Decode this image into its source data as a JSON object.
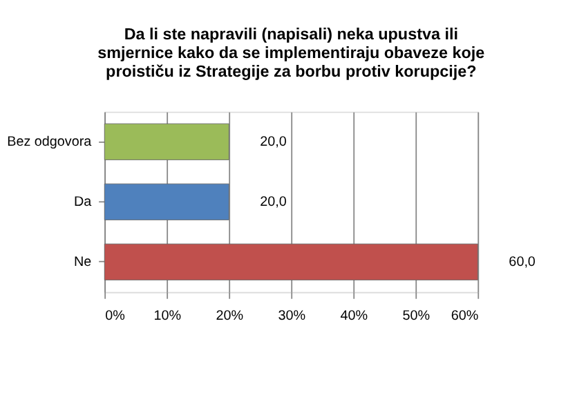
{
  "chart_data": {
    "type": "bar",
    "orientation": "horizontal",
    "title": "Da li ste napravili (napisali) neka upustva ili\nsmjernice kako da se implementiraju obaveze koje\nproističu iz Strategije za borbu protiv korupcije?",
    "categories": [
      "Bez odgovora",
      "Da",
      "Ne"
    ],
    "values": [
      20,
      20,
      60
    ],
    "colors": [
      "#9bbb59",
      "#4f81bd",
      "#c0504d"
    ],
    "value_labels": [
      "20,0",
      "20,0",
      "60,0"
    ],
    "xlim": [
      0,
      60
    ],
    "xticks": [
      {
        "value": 0,
        "label": "0%"
      },
      {
        "value": 10,
        "label": "10%"
      },
      {
        "value": 20,
        "label": "20%"
      },
      {
        "value": 30,
        "label": "30%"
      },
      {
        "value": 40,
        "label": "40%"
      },
      {
        "value": 50,
        "label": "50%"
      },
      {
        "value": 60,
        "label": "60%"
      }
    ],
    "grid": "x",
    "legend": false
  }
}
